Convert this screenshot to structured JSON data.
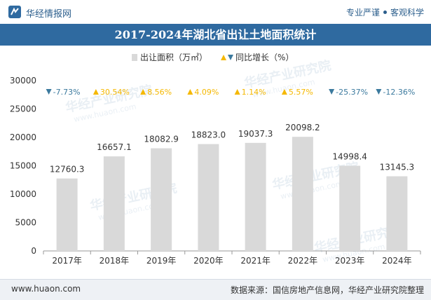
{
  "header": {
    "brand": "华经情报网",
    "tagline_left": "专业严谨",
    "tagline_right": "客观科学"
  },
  "watermark": {
    "cn": "华经产业研究院",
    "en": "www.huaon.com"
  },
  "colors": {
    "bar": "#d9d9d9",
    "up": "#f5b800",
    "down": "#3c7a9e",
    "title_bg": "#2f6aa0"
  },
  "footer": {
    "site": "www.huaon.com",
    "source": "数据来源：国信房地产信息网，华经产业研究院整理"
  },
  "chart_data": {
    "type": "bar",
    "title": "2017-2024年湖北省出让土地面积统计",
    "categories": [
      "2017年",
      "2018年",
      "2019年",
      "2020年",
      "2021年",
      "2022年",
      "2023年",
      "2024年"
    ],
    "series": [
      {
        "name": "出让面积（万㎡）",
        "values": [
          12760.3,
          16657.1,
          18082.9,
          18823.0,
          19037.3,
          20098.2,
          14998.4,
          13145.3
        ],
        "labels": [
          "12760.3",
          "16657.1",
          "18082.9",
          "18823.0",
          "19037.3",
          "20098.2",
          "14998.4",
          "13145.3"
        ]
      },
      {
        "name": "同比增长（%）",
        "values": [
          -7.73,
          30.54,
          8.56,
          4.09,
          1.14,
          5.57,
          -25.37,
          -12.36
        ],
        "labels": [
          "-7.73%",
          "30.54%",
          "8.56%",
          "4.09%",
          "1.14%",
          "5.57%",
          "-25.37%",
          "-12.36%"
        ]
      }
    ],
    "ylim": [
      0,
      30000
    ],
    "yticks": [
      "0",
      "5000",
      "10000",
      "15000",
      "20000",
      "25000",
      "30000"
    ],
    "legend_position": "top-center"
  }
}
